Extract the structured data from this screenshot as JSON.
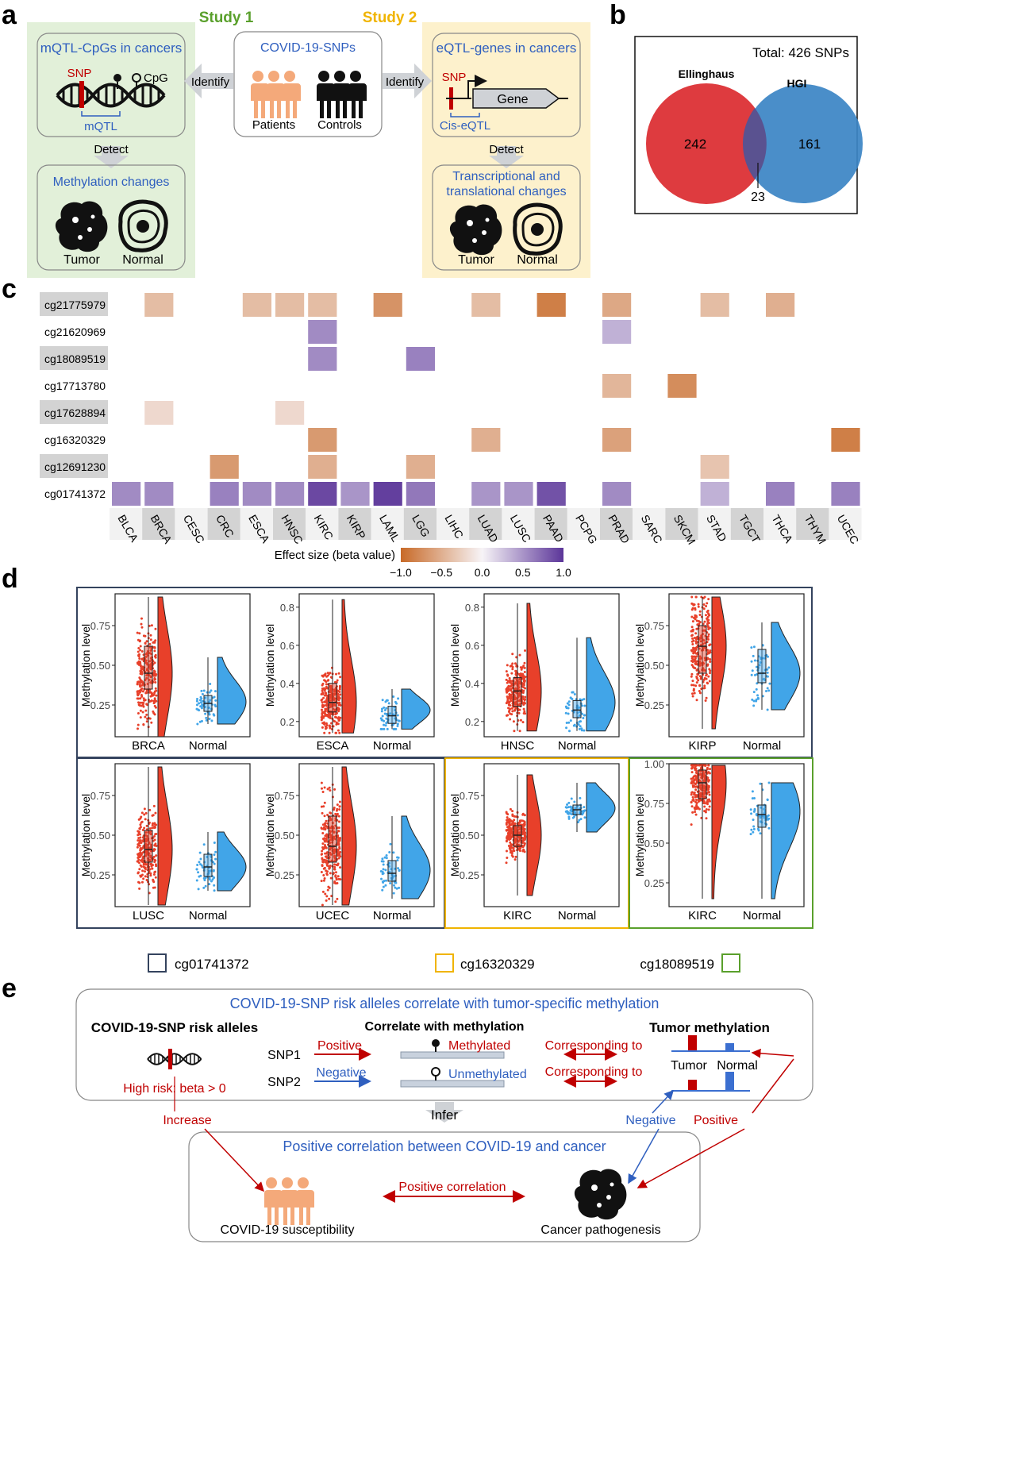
{
  "panel_labels": {
    "a": "a",
    "b": "b",
    "c": "c",
    "d": "d",
    "e": "e"
  },
  "colors": {
    "green_bg": "#e2f0d9",
    "yellow_bg": "#fdf1cc",
    "blue_text": "#2f5fbf",
    "red": "#c00000",
    "study1": "#5aa02c",
    "study2": "#f0b400",
    "venn_red": "#de3b3f",
    "venn_blue": "#3b84c4",
    "person_orange": "#f4a97a",
    "tumor_red": "#e8402a",
    "normal_blue": "#41a5e8",
    "frame_navy": "#34435e",
    "frame_yellow": "#f0b400",
    "frame_green": "#5aa02c",
    "neg_strong": "#c86a28",
    "pos_strong": "#5b3599"
  },
  "panel_a": {
    "study1": "Study 1",
    "study2": "Study 2",
    "mqtl_title": "mQTL-CpGs in cancers",
    "snp": "SNP",
    "cpg": "CpG",
    "mqtl": "mQTL",
    "center_title": "COVID-19-SNPs",
    "patients": "Patients",
    "controls": "Controls",
    "identify_left": "Identify",
    "identify_right": "Identify",
    "eqtl_title": "eQTL-genes in cancers",
    "gene": "Gene",
    "ciseqtl": "Cis-eQTL",
    "detect_left": "Detect",
    "detect_right": "Detect",
    "meth_title": "Methylation changes",
    "trans_title1": "Transcriptional and",
    "trans_title2": "translational changes",
    "tumor": "Tumor",
    "normal": "Normal"
  },
  "panel_b": {
    "total": "Total: 426 SNPs",
    "left_label": "Ellinghaus",
    "right_label": "HGI",
    "left_only": "242",
    "right_only": "161",
    "overlap": "23"
  },
  "panel_c": {
    "chart_data": {
      "type": "heatmap",
      "rows": [
        "cg21775979",
        "cg21620969",
        "cg18089519",
        "cg17713780",
        "cg17628894",
        "cg16320329",
        "cg12691230",
        "cg01741372"
      ],
      "columns": [
        "BLCA",
        "BRCA",
        "CESC",
        "CRC",
        "ESCA",
        "HNSC",
        "KIRC",
        "KIRP",
        "LAML",
        "LGG",
        "LIHC",
        "LUAD",
        "LUSC",
        "PAAD",
        "PCPG",
        "PRAD",
        "SARC",
        "SKCM",
        "STAD",
        "TGCT",
        "THCA",
        "THYM",
        "UCEC"
      ],
      "values": [
        [
          null,
          -0.4,
          null,
          null,
          -0.4,
          -0.4,
          -0.4,
          null,
          -0.7,
          null,
          null,
          -0.4,
          null,
          -0.85,
          null,
          -0.55,
          null,
          null,
          -0.4,
          null,
          -0.5,
          null,
          null
        ],
        [
          null,
          null,
          null,
          null,
          null,
          null,
          0.55,
          null,
          null,
          null,
          null,
          null,
          null,
          null,
          null,
          0.35,
          null,
          null,
          null,
          null,
          null,
          null,
          null
        ],
        [
          null,
          null,
          null,
          null,
          null,
          null,
          0.55,
          null,
          null,
          0.6,
          null,
          null,
          null,
          null,
          null,
          null,
          null,
          null,
          null,
          null,
          null,
          null,
          null
        ],
        [
          null,
          null,
          null,
          null,
          null,
          null,
          null,
          null,
          null,
          null,
          null,
          null,
          null,
          null,
          null,
          -0.45,
          null,
          -0.75,
          null,
          null,
          null,
          null,
          null
        ],
        [
          null,
          -0.2,
          null,
          null,
          null,
          -0.2,
          null,
          null,
          null,
          null,
          null,
          null,
          null,
          null,
          null,
          null,
          null,
          null,
          null,
          null,
          null,
          null,
          null
        ],
        [
          null,
          null,
          null,
          null,
          null,
          null,
          -0.65,
          null,
          null,
          null,
          null,
          -0.5,
          null,
          null,
          null,
          -0.6,
          null,
          null,
          null,
          null,
          null,
          null,
          -0.85
        ],
        [
          null,
          null,
          null,
          -0.65,
          null,
          null,
          -0.5,
          null,
          null,
          -0.5,
          null,
          null,
          null,
          null,
          null,
          null,
          null,
          null,
          -0.35,
          null,
          null,
          null,
          null
        ],
        [
          0.55,
          0.55,
          null,
          0.6,
          0.55,
          0.55,
          0.9,
          0.5,
          0.95,
          0.65,
          null,
          0.5,
          0.5,
          0.85,
          null,
          0.55,
          null,
          null,
          0.35,
          null,
          0.6,
          null,
          0.6
        ]
      ],
      "legend_title": "Effect size (beta value)",
      "legend_ticks": [
        "−1.0",
        "−0.5",
        "0.0",
        "0.5",
        "1.0"
      ],
      "scale": [
        -1.0,
        1.0
      ]
    }
  },
  "panel_d": {
    "ylabel": "Methylation level",
    "legend": [
      "cg01741372",
      "cg16320329",
      "cg18089519"
    ],
    "plots": [
      {
        "tumor": "BRCA",
        "normal": "Normal",
        "ticks": [
          "0.75",
          "0.50",
          "0.25"
        ],
        "tick_vals": [
          0.75,
          0.5,
          0.25
        ],
        "range": [
          0.05,
          0.95
        ],
        "t_med": 0.45,
        "t_q": [
          0.35,
          0.62
        ],
        "n_med": 0.26,
        "n_q": [
          0.21,
          0.31
        ],
        "t_spread": [
          0.05,
          0.93
        ],
        "n_spread": [
          0.13,
          0.55
        ],
        "n_peak": 0.27,
        "frame": "navy"
      },
      {
        "tumor": "ESCA",
        "normal": "Normal",
        "ticks": [
          "0.8",
          "0.6",
          "0.4",
          "0.2"
        ],
        "tick_vals": [
          0.8,
          0.6,
          0.4,
          0.2
        ],
        "range": [
          0.12,
          0.87
        ],
        "t_med": 0.3,
        "t_q": [
          0.25,
          0.4
        ],
        "n_med": 0.23,
        "n_q": [
          0.19,
          0.28
        ],
        "t_spread": [
          0.14,
          0.84
        ],
        "n_spread": [
          0.16,
          0.37
        ],
        "n_peak": 0.26,
        "frame": "navy"
      },
      {
        "tumor": "HNSC",
        "normal": "Normal",
        "ticks": [
          "0.8",
          "0.6",
          "0.4",
          "0.2"
        ],
        "tick_vals": [
          0.8,
          0.6,
          0.4,
          0.2
        ],
        "range": [
          0.12,
          0.87
        ],
        "t_med": 0.36,
        "t_q": [
          0.28,
          0.43
        ],
        "n_med": 0.26,
        "n_q": [
          0.22,
          0.31
        ],
        "t_spread": [
          0.15,
          0.82
        ],
        "n_spread": [
          0.15,
          0.64
        ],
        "n_peak": 0.3,
        "frame": "navy"
      },
      {
        "tumor": "KIRP",
        "normal": "Normal",
        "ticks": [
          "0.75",
          "0.50",
          "0.25"
        ],
        "tick_vals": [
          0.75,
          0.5,
          0.25
        ],
        "range": [
          0.05,
          0.95
        ],
        "t_med": 0.62,
        "t_q": [
          0.45,
          0.75
        ],
        "n_med": 0.45,
        "n_q": [
          0.39,
          0.6
        ],
        "t_spread": [
          0.1,
          0.93
        ],
        "n_spread": [
          0.22,
          0.77
        ],
        "n_peak": 0.45,
        "frame": "navy"
      },
      {
        "tumor": "LUSC",
        "normal": "Normal",
        "ticks": [
          "0.75",
          "0.50",
          "0.25"
        ],
        "tick_vals": [
          0.75,
          0.5,
          0.25
        ],
        "range": [
          0.05,
          0.95
        ],
        "t_med": 0.41,
        "t_q": [
          0.33,
          0.53
        ],
        "n_med": 0.3,
        "n_q": [
          0.24,
          0.38
        ],
        "t_spread": [
          0.06,
          0.93
        ],
        "n_spread": [
          0.15,
          0.52
        ],
        "n_peak": 0.3,
        "frame": "navy"
      },
      {
        "tumor": "UCEC",
        "normal": "Normal",
        "ticks": [
          "0.75",
          "0.50",
          "0.25"
        ],
        "tick_vals": [
          0.75,
          0.5,
          0.25
        ],
        "range": [
          0.05,
          0.95
        ],
        "t_med": 0.43,
        "t_q": [
          0.33,
          0.62
        ],
        "n_med": 0.26,
        "n_q": [
          0.21,
          0.34
        ],
        "t_spread": [
          0.06,
          0.93
        ],
        "n_spread": [
          0.1,
          0.62
        ],
        "n_peak": 0.28,
        "frame": "navy"
      },
      {
        "tumor": "KIRC",
        "normal": "Normal",
        "ticks": [
          "0.75",
          "0.50",
          "0.25"
        ],
        "tick_vals": [
          0.75,
          0.5,
          0.25
        ],
        "range": [
          0.05,
          0.95
        ],
        "t_med": 0.5,
        "t_q": [
          0.43,
          0.56
        ],
        "n_med": 0.66,
        "n_q": [
          0.63,
          0.69
        ],
        "t_spread": [
          0.12,
          0.88
        ],
        "n_spread": [
          0.52,
          0.83
        ],
        "n_peak": 0.67,
        "frame": "yellow"
      },
      {
        "tumor": "KIRC",
        "normal": "Normal",
        "ticks": [
          "1.00",
          "0.75",
          "0.50",
          "0.25"
        ],
        "tick_vals": [
          1.0,
          0.75,
          0.5,
          0.25
        ],
        "range": [
          0.1,
          1.0
        ],
        "t_med": 0.88,
        "t_q": [
          0.78,
          0.96
        ],
        "n_med": 0.68,
        "n_q": [
          0.6,
          0.74
        ],
        "t_spread": [
          0.15,
          0.99
        ],
        "n_spread": [
          0.15,
          0.88
        ],
        "n_peak": 0.7,
        "frame": "green"
      }
    ]
  },
  "panel_e": {
    "top_title": "COVID-19-SNP risk alleles correlate with tumor-specific methylation",
    "risk_title": "COVID-19-SNP risk alleles",
    "high_risk": "High risk: beta > 0",
    "corr_title": "Correlate with methylation",
    "tumor_meth_title": "Tumor methylation",
    "snp1": "SNP1",
    "snp2": "SNP2",
    "positive": "Positive",
    "negative": "Negative",
    "methylated": "Methylated",
    "unmethylated": "Unmethylated",
    "corr_to_1": "Corresponding to",
    "corr_to_2": "Corresponding to",
    "tumor": "Tumor",
    "normal": "Normal",
    "infer": "Infer",
    "increase": "Increase",
    "neg2": "Negative",
    "pos2": "Positive",
    "bottom_title": "Positive correlation between COVID-19 and cancer",
    "pos_corr": "Positive correlation",
    "covid_sus": "COVID-19 susceptibility",
    "cancer": "Cancer pathogenesis"
  }
}
